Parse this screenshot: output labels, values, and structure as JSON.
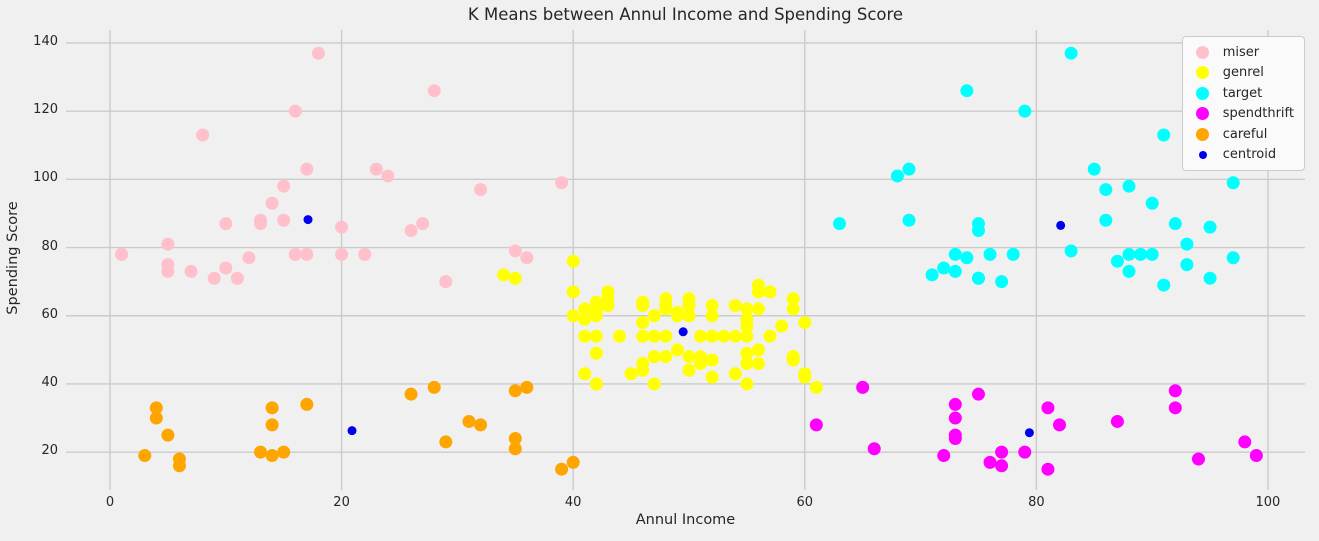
{
  "figure": {
    "background": "#f0f0f0",
    "grid_color": "#cbcbcb",
    "text_color": "#262626",
    "legend_background": "#fafafa",
    "legend_border": "#cccccc"
  },
  "chart_data": {
    "type": "scatter",
    "title": "K Means between Annul Income and Spending Score",
    "xlabel": "Annul Income",
    "ylabel": "Spending Score",
    "xlim": [
      -3.8,
      103.2
    ],
    "ylim": [
      8.9,
      143.8
    ],
    "xticks": [
      0,
      20,
      40,
      60,
      80,
      100
    ],
    "yticks": [
      20,
      40,
      60,
      80,
      100,
      120,
      140
    ],
    "grid": true,
    "legend_position": "upper right",
    "series": [
      {
        "name": "miser",
        "color": "#ffc0cb",
        "marker_size": 13,
        "points": [
          [
            29,
            70
          ],
          [
            11,
            71
          ],
          [
            9,
            71
          ],
          [
            5,
            73
          ],
          [
            7,
            73
          ],
          [
            10,
            74
          ],
          [
            5,
            75
          ],
          [
            12,
            77
          ],
          [
            36,
            77
          ],
          [
            22,
            78
          ],
          [
            17,
            78
          ],
          [
            20,
            78
          ],
          [
            16,
            78
          ],
          [
            1,
            78
          ],
          [
            1,
            78
          ],
          [
            35,
            79
          ],
          [
            5,
            81
          ],
          [
            26,
            85
          ],
          [
            20,
            86
          ],
          [
            27,
            87
          ],
          [
            13,
            87
          ],
          [
            10,
            87
          ],
          [
            13,
            88
          ],
          [
            15,
            88
          ],
          [
            14,
            93
          ],
          [
            32,
            97
          ],
          [
            15,
            98
          ],
          [
            39,
            99
          ],
          [
            24,
            101
          ],
          [
            17,
            103
          ],
          [
            23,
            103
          ],
          [
            8,
            113
          ],
          [
            16,
            120
          ],
          [
            28,
            126
          ],
          [
            18,
            137
          ]
        ]
      },
      {
        "name": "genrel",
        "color": "#ffff00",
        "marker_size": 13,
        "points": [
          [
            55,
            40
          ],
          [
            47,
            40
          ],
          [
            42,
            40
          ],
          [
            42,
            40
          ],
          [
            52,
            42
          ],
          [
            60,
            42
          ],
          [
            54,
            43
          ],
          [
            60,
            43
          ],
          [
            45,
            43
          ],
          [
            41,
            43
          ],
          [
            50,
            44
          ],
          [
            46,
            44
          ],
          [
            51,
            46
          ],
          [
            46,
            46
          ],
          [
            56,
            46
          ],
          [
            55,
            46
          ],
          [
            52,
            47
          ],
          [
            59,
            47
          ],
          [
            51,
            48
          ],
          [
            59,
            48
          ],
          [
            50,
            48
          ],
          [
            48,
            48
          ],
          [
            59,
            48
          ],
          [
            47,
            48
          ],
          [
            55,
            49
          ],
          [
            42,
            49
          ],
          [
            49,
            50
          ],
          [
            56,
            50
          ],
          [
            47,
            54
          ],
          [
            54,
            54
          ],
          [
            53,
            54
          ],
          [
            48,
            54
          ],
          [
            52,
            54
          ],
          [
            42,
            54
          ],
          [
            51,
            54
          ],
          [
            55,
            54
          ],
          [
            41,
            54
          ],
          [
            44,
            54
          ],
          [
            57,
            54
          ],
          [
            46,
            54
          ],
          [
            58,
            57
          ],
          [
            55,
            57
          ],
          [
            60,
            58
          ],
          [
            46,
            58
          ],
          [
            55,
            59
          ],
          [
            41,
            59
          ],
          [
            49,
            60
          ],
          [
            40,
            60
          ],
          [
            42,
            60
          ],
          [
            52,
            60
          ],
          [
            47,
            60
          ],
          [
            50,
            60
          ],
          [
            42,
            61
          ],
          [
            49,
            61
          ],
          [
            41,
            62
          ],
          [
            48,
            62
          ],
          [
            59,
            62
          ],
          [
            55,
            62
          ],
          [
            56,
            62
          ],
          [
            42,
            62
          ],
          [
            50,
            63
          ],
          [
            46,
            63
          ],
          [
            43,
            63
          ],
          [
            48,
            63
          ],
          [
            52,
            63
          ],
          [
            54,
            63
          ],
          [
            42,
            64
          ],
          [
            46,
            64
          ],
          [
            48,
            65
          ],
          [
            50,
            65
          ],
          [
            43,
            65
          ],
          [
            59,
            65
          ],
          [
            43,
            67
          ],
          [
            57,
            67
          ],
          [
            56,
            67
          ],
          [
            40,
            67
          ],
          [
            61,
            39
          ],
          [
            56,
            69
          ],
          [
            35,
            71
          ],
          [
            34,
            72
          ],
          [
            40,
            76
          ]
        ]
      },
      {
        "name": "target",
        "color": "#00ffff",
        "marker_size": 13,
        "points": [
          [
            91,
            69
          ],
          [
            77,
            70
          ],
          [
            95,
            71
          ],
          [
            75,
            71
          ],
          [
            75,
            71
          ],
          [
            71,
            72
          ],
          [
            88,
            73
          ],
          [
            73,
            73
          ],
          [
            72,
            74
          ],
          [
            93,
            75
          ],
          [
            87,
            76
          ],
          [
            97,
            77
          ],
          [
            74,
            77
          ],
          [
            90,
            78
          ],
          [
            88,
            78
          ],
          [
            76,
            78
          ],
          [
            89,
            78
          ],
          [
            78,
            78
          ],
          [
            73,
            78
          ],
          [
            83,
            79
          ],
          [
            93,
            81
          ],
          [
            75,
            85
          ],
          [
            95,
            86
          ],
          [
            63,
            87
          ],
          [
            75,
            87
          ],
          [
            92,
            87
          ],
          [
            86,
            88
          ],
          [
            69,
            88
          ],
          [
            90,
            93
          ],
          [
            86,
            97
          ],
          [
            88,
            98
          ],
          [
            97,
            99
          ],
          [
            68,
            101
          ],
          [
            85,
            103
          ],
          [
            69,
            103
          ],
          [
            91,
            113
          ],
          [
            79,
            120
          ],
          [
            74,
            126
          ],
          [
            83,
            137
          ]
        ]
      },
      {
        "name": "spendthrift",
        "color": "#ff00ff",
        "marker_size": 13,
        "points": [
          [
            81,
            15
          ],
          [
            77,
            16
          ],
          [
            76,
            17
          ],
          [
            94,
            18
          ],
          [
            72,
            19
          ],
          [
            99,
            19
          ],
          [
            77,
            20
          ],
          [
            79,
            20
          ],
          [
            66,
            21
          ],
          [
            98,
            23
          ],
          [
            73,
            24
          ],
          [
            73,
            25
          ],
          [
            82,
            28
          ],
          [
            61,
            28
          ],
          [
            87,
            29
          ],
          [
            73,
            30
          ],
          [
            92,
            33
          ],
          [
            81,
            33
          ],
          [
            73,
            34
          ],
          [
            75,
            37
          ],
          [
            92,
            38
          ],
          [
            65,
            39
          ]
        ]
      },
      {
        "name": "careful",
        "color": "#ffa500",
        "marker_size": 13,
        "points": [
          [
            39,
            15
          ],
          [
            6,
            16
          ],
          [
            40,
            17
          ],
          [
            6,
            18
          ],
          [
            3,
            19
          ],
          [
            14,
            19
          ],
          [
            15,
            20
          ],
          [
            13,
            20
          ],
          [
            35,
            21
          ],
          [
            29,
            23
          ],
          [
            35,
            24
          ],
          [
            5,
            25
          ],
          [
            14,
            28
          ],
          [
            32,
            28
          ],
          [
            31,
            29
          ],
          [
            4,
            30
          ],
          [
            4,
            33
          ],
          [
            14,
            33
          ],
          [
            17,
            34
          ],
          [
            26,
            37
          ],
          [
            35,
            38
          ],
          [
            36,
            39
          ],
          [
            28,
            39
          ]
        ]
      },
      {
        "name": "centroid",
        "color": "#0000ee",
        "marker_size": 9,
        "points": [
          [
            17.1,
            88.2
          ],
          [
            20.9,
            26.3
          ],
          [
            49.5,
            55.3
          ],
          [
            82.1,
            86.5
          ],
          [
            79.4,
            25.7
          ]
        ]
      }
    ]
  }
}
